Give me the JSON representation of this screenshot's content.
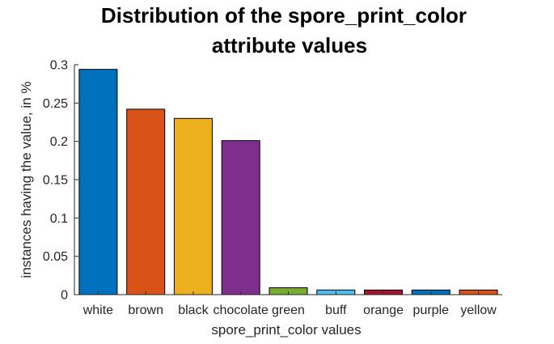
{
  "chart_data": {
    "type": "bar",
    "title_lines": [
      "Distribution of the spore_print_color",
      "attribute values"
    ],
    "xlabel": "spore_print_color values",
    "ylabel": "instances having the value, in %",
    "categories": [
      "white",
      "brown",
      "black",
      "chocolate",
      "green",
      "buff",
      "orange",
      "purple",
      "yellow"
    ],
    "values": [
      0.294,
      0.242,
      0.23,
      0.201,
      0.009,
      0.006,
      0.006,
      0.006,
      0.006
    ],
    "colors": [
      "#0072BD",
      "#D95319",
      "#EDB120",
      "#7E2F8E",
      "#77AC30",
      "#4DBEEE",
      "#A2142F",
      "#0072BD",
      "#D95319"
    ],
    "ylim": [
      0,
      0.3
    ],
    "yticks": [
      0,
      0.05,
      0.1,
      0.15,
      0.2,
      0.25,
      0.3
    ],
    "ytick_labels": [
      "0",
      "0.05",
      "0.1",
      "0.15",
      "0.2",
      "0.25",
      "0.3"
    ],
    "grid": false,
    "legend": "none"
  }
}
